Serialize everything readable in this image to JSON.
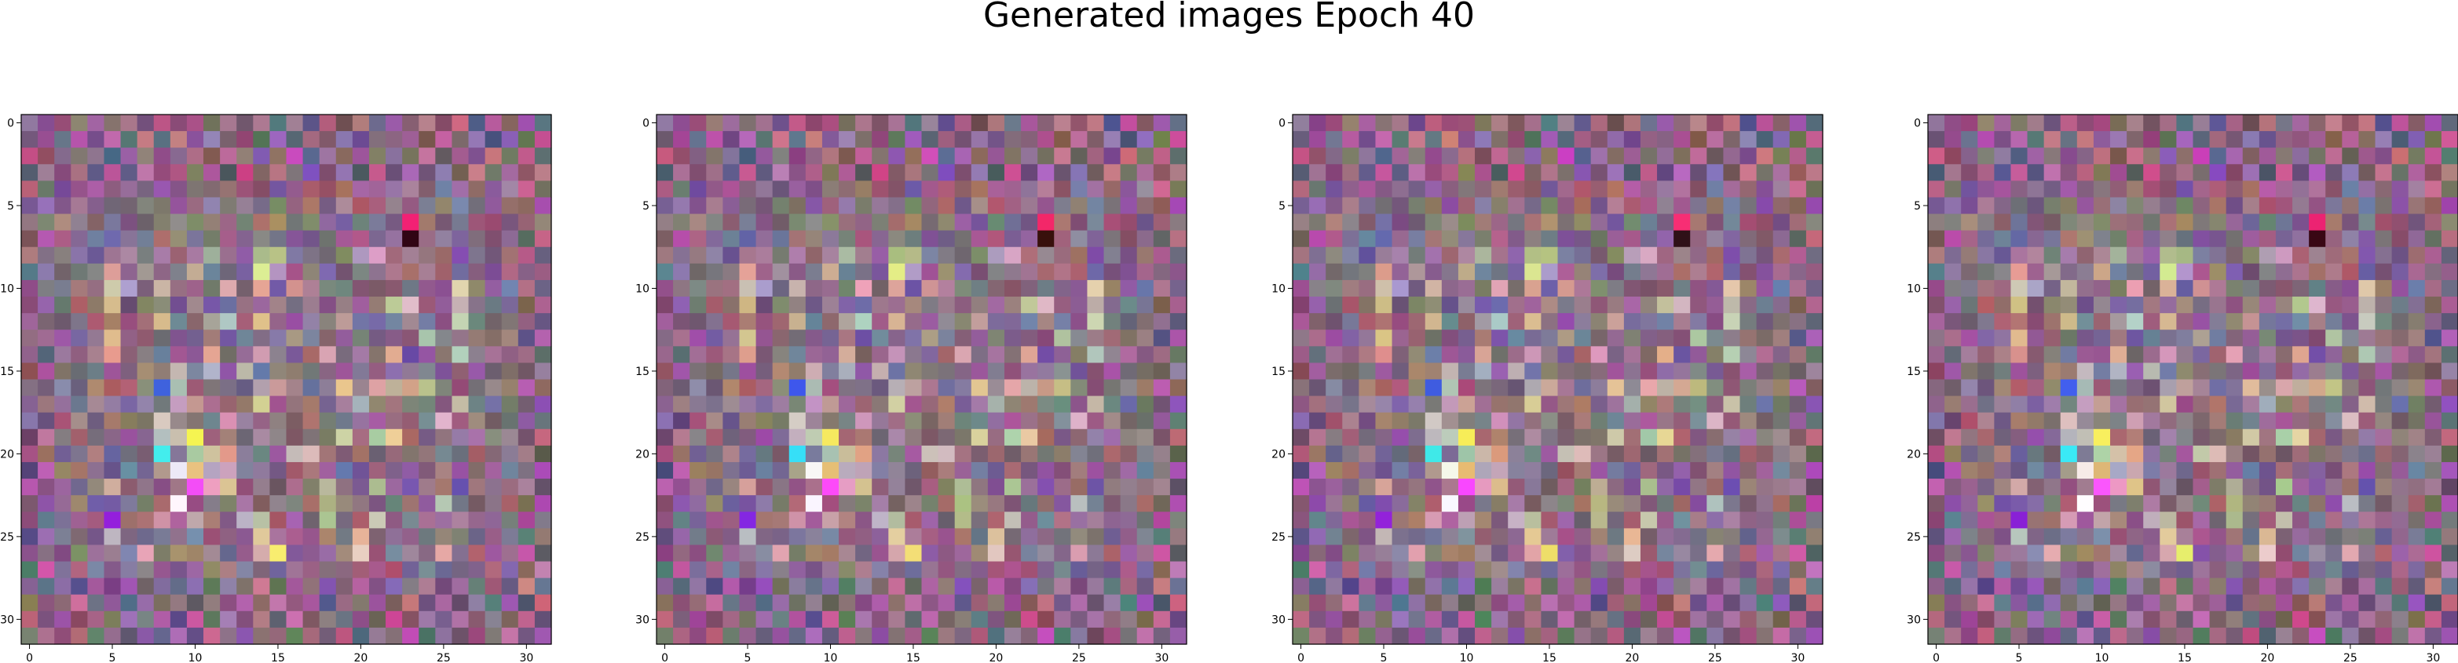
{
  "figure": {
    "title": "Generated images Epoch 40"
  },
  "chart_data": [
    {
      "type": "heatmap",
      "xlim": [
        -0.5,
        31.5
      ],
      "ylim": [
        31.5,
        -0.5
      ],
      "xticks": [
        0,
        5,
        10,
        15,
        20,
        25,
        30
      ],
      "yticks": [
        0,
        5,
        10,
        15,
        20,
        25,
        30
      ],
      "xticklabels": [
        "0",
        "5",
        "10",
        "15",
        "20",
        "25",
        "30"
      ],
      "yticklabels": [
        "0",
        "5",
        "10",
        "15",
        "20",
        "25",
        "30"
      ],
      "grid": false,
      "seed": 11
    },
    {
      "type": "heatmap",
      "xlim": [
        -0.5,
        31.5
      ],
      "ylim": [
        31.5,
        -0.5
      ],
      "xticks": [
        0,
        5,
        10,
        15,
        20,
        25,
        30
      ],
      "yticks": [
        0,
        5,
        10,
        15,
        20,
        25,
        30
      ],
      "xticklabels": [
        "0",
        "5",
        "10",
        "15",
        "20",
        "25",
        "30"
      ],
      "yticklabels": [
        "0",
        "5",
        "10",
        "15",
        "20",
        "25",
        "30"
      ],
      "grid": false,
      "seed": 23
    },
    {
      "type": "heatmap",
      "xlim": [
        -0.5,
        31.5
      ],
      "ylim": [
        31.5,
        -0.5
      ],
      "xticks": [
        0,
        5,
        10,
        15,
        20,
        25,
        30
      ],
      "yticks": [
        0,
        5,
        10,
        15,
        20,
        25,
        30
      ],
      "xticklabels": [
        "0",
        "5",
        "10",
        "15",
        "20",
        "25",
        "30"
      ],
      "yticklabels": [
        "0",
        "5",
        "10",
        "15",
        "20",
        "25",
        "30"
      ],
      "grid": false,
      "seed": 37
    },
    {
      "type": "heatmap",
      "xlim": [
        -0.5,
        31.5
      ],
      "ylim": [
        31.5,
        -0.5
      ],
      "xticks": [
        0,
        5,
        10,
        15,
        20,
        25,
        30
      ],
      "yticks": [
        0,
        5,
        10,
        15,
        20,
        25,
        30
      ],
      "xticklabels": [
        "0",
        "5",
        "10",
        "15",
        "20",
        "25",
        "30"
      ],
      "yticklabels": [
        "0",
        "5",
        "10",
        "15",
        "20",
        "25",
        "30"
      ],
      "grid": false,
      "seed": 53
    }
  ]
}
